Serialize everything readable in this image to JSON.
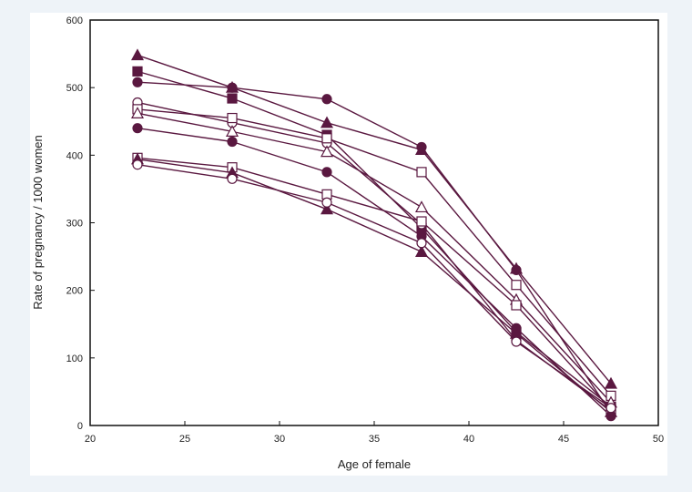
{
  "chart_data": {
    "type": "line",
    "title": "",
    "xlabel": "Age of female",
    "ylabel": "Rate of pregnancy / 1000 women",
    "xlim": [
      20,
      50
    ],
    "ylim": [
      0,
      600
    ],
    "xticks": [
      20,
      25,
      30,
      35,
      40,
      45,
      50
    ],
    "yticks": [
      0,
      100,
      200,
      300,
      400,
      500,
      600
    ],
    "grid": false,
    "legend": "none",
    "line_color": "#5a1840",
    "x": [
      22.5,
      27.5,
      32.5,
      37.5,
      42.5,
      47.5
    ],
    "series": [
      {
        "marker": "filled-triangle",
        "values": [
          548,
          500,
          448,
          408,
          232,
          62
        ]
      },
      {
        "marker": "filled-square",
        "values": [
          524,
          484,
          430,
          292,
          138,
          28
        ]
      },
      {
        "marker": "filled-circle",
        "values": [
          508,
          500,
          483,
          412,
          230,
          18
        ]
      },
      {
        "marker": "open-circle",
        "values": [
          478,
          448,
          418,
          298,
          126,
          22
        ]
      },
      {
        "marker": "open-square",
        "values": [
          468,
          455,
          425,
          375,
          208,
          44
        ]
      },
      {
        "marker": "open-triangle",
        "values": [
          462,
          435,
          405,
          323,
          186,
          34
        ]
      },
      {
        "marker": "filled-circle",
        "values": [
          440,
          420,
          375,
          280,
          144,
          14
        ]
      },
      {
        "marker": "open-square",
        "values": [
          396,
          382,
          342,
          302,
          178,
          24
        ]
      },
      {
        "marker": "filled-triangle",
        "values": [
          394,
          374,
          320,
          257,
          136,
          20
        ]
      },
      {
        "marker": "open-circle",
        "values": [
          386,
          365,
          330,
          270,
          124,
          26
        ]
      }
    ]
  }
}
